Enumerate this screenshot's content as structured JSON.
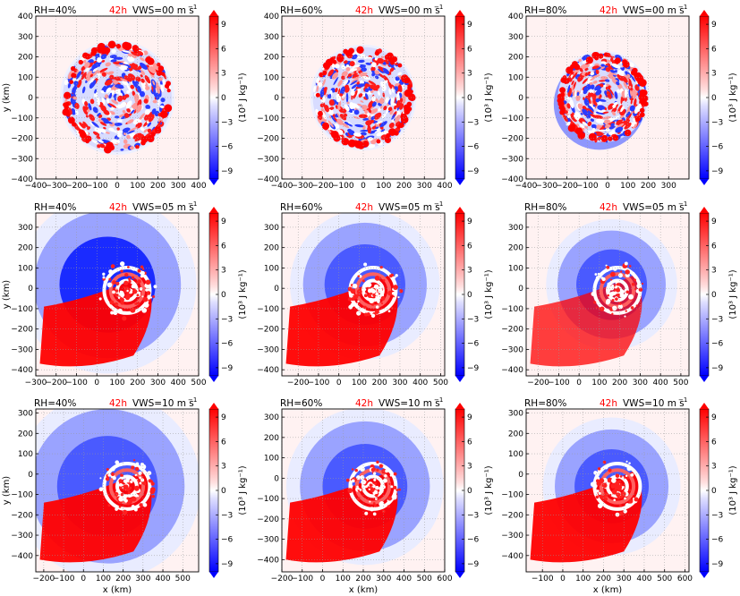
{
  "figure": {
    "panels": [
      {
        "rh": "RH=40%",
        "time": "42h",
        "vws": "VWS=00 m s",
        "vws_sup": "−1"
      },
      {
        "rh": "RH=60%",
        "time": "42h",
        "vws": "VWS=00 m s",
        "vws_sup": "−1"
      },
      {
        "rh": "RH=80%",
        "time": "42h",
        "vws": "VWS=00 m s",
        "vws_sup": "−1"
      },
      {
        "rh": "RH=40%",
        "time": "42h",
        "vws": "VWS=05 m s",
        "vws_sup": "−1"
      },
      {
        "rh": "RH=60%",
        "time": "42h",
        "vws": "VWS=05 m s",
        "vws_sup": "−1"
      },
      {
        "rh": "RH=80%",
        "time": "42h",
        "vws": "VWS=05 m s",
        "vws_sup": "−1"
      },
      {
        "rh": "RH=40%",
        "time": "42h",
        "vws": "VWS=10 m s",
        "vws_sup": "−1"
      },
      {
        "rh": "RH=60%",
        "time": "42h",
        "vws": "VWS=10 m s",
        "vws_sup": "−1"
      },
      {
        "rh": "RH=80%",
        "time": "42h",
        "vws": "VWS=10 m s",
        "vws_sup": "−1"
      }
    ],
    "xlabel": "x (km)",
    "ylabel": "y (km)",
    "colorbar_label": "(10³ J kg⁻¹)",
    "colorbar_ticks": [
      "9",
      "6",
      "3",
      "0",
      "−3",
      "−6",
      "−9"
    ]
  },
  "colors": {
    "positive": "#ff0000",
    "negative": "#0000ff",
    "neutral": "#ffffff",
    "title_time": "#ff0000"
  },
  "chart_data": [
    {
      "type": "heatmap",
      "panel": "RH=40%, VWS=00",
      "xlim": [
        -400,
        400
      ],
      "ylim": [
        -400,
        400
      ],
      "xticks": [
        "−400",
        "−300",
        "−200",
        "−100",
        "0",
        "100",
        "200",
        "300",
        "400"
      ],
      "yticks": [
        "400",
        "300",
        "200",
        "100",
        "0",
        "−100",
        "−200",
        "−300",
        "−400"
      ],
      "colorbar_range": [
        -10,
        10
      ],
      "grid": true
    },
    {
      "type": "heatmap",
      "panel": "RH=60%, VWS=00",
      "xlim": [
        -400,
        400
      ],
      "ylim": [
        -400,
        400
      ],
      "xticks": [
        "−400",
        "−300",
        "−200",
        "−100",
        "0",
        "100",
        "200",
        "300",
        "400"
      ],
      "yticks": [
        "400",
        "300",
        "200",
        "100",
        "0",
        "−100",
        "−200",
        "−300",
        "−400"
      ],
      "colorbar_range": [
        -10,
        10
      ],
      "grid": true
    },
    {
      "type": "heatmap",
      "panel": "RH=80%, VWS=00",
      "xlim": [
        -400,
        400
      ],
      "ylim": [
        -400,
        400
      ],
      "xticks": [
        "−400",
        "−300",
        "−200",
        "−100",
        "0",
        "100",
        "200",
        "300"
      ],
      "yticks": [
        "400",
        "300",
        "200",
        "100",
        "0",
        "−100",
        "−200",
        "−300",
        "−400"
      ],
      "colorbar_range": [
        -10,
        10
      ],
      "grid": true
    },
    {
      "type": "heatmap",
      "panel": "RH=40%, VWS=05",
      "xlim": [
        -300,
        500
      ],
      "ylim": [
        -430,
        370
      ],
      "xticks": [
        "−300",
        "−200",
        "−100",
        "0",
        "100",
        "200",
        "300",
        "400",
        "500"
      ],
      "yticks": [
        "300",
        "200",
        "100",
        "0",
        "−100",
        "−200",
        "−300",
        "−400"
      ],
      "colorbar_range": [
        -10,
        10
      ],
      "grid": true
    },
    {
      "type": "heatmap",
      "panel": "RH=60%, VWS=05",
      "xlim": [
        -280,
        520
      ],
      "ylim": [
        -430,
        370
      ],
      "xticks": [
        "−200",
        "−100",
        "0",
        "100",
        "200",
        "300",
        "400",
        "500"
      ],
      "yticks": [
        "300",
        "200",
        "100",
        "0",
        "−100",
        "−200",
        "−300",
        "−400"
      ],
      "colorbar_range": [
        -10,
        10
      ],
      "grid": true
    },
    {
      "type": "heatmap",
      "panel": "RH=80%, VWS=05",
      "xlim": [
        -260,
        540
      ],
      "ylim": [
        -430,
        370
      ],
      "xticks": [
        "−200",
        "−100",
        "0",
        "100",
        "200",
        "300",
        "400",
        "500"
      ],
      "yticks": [
        "300",
        "200",
        "100",
        "0",
        "−100",
        "−200",
        "−300",
        "−400"
      ],
      "colorbar_range": [
        -10,
        10
      ],
      "grid": true
    },
    {
      "type": "heatmap",
      "panel": "RH=40%, VWS=10",
      "xlim": [
        -240,
        580
      ],
      "ylim": [
        -480,
        320
      ],
      "xticks": [
        "−200",
        "−100",
        "0",
        "100",
        "200",
        "300",
        "400",
        "500"
      ],
      "yticks": [
        "300",
        "200",
        "100",
        "0",
        "−100",
        "−200",
        "−300",
        "−400"
      ],
      "colorbar_range": [
        -10,
        10
      ],
      "grid": true
    },
    {
      "type": "heatmap",
      "panel": "RH=60%, VWS=10",
      "xlim": [
        -200,
        600
      ],
      "ylim": [
        -460,
        340
      ],
      "xticks": [
        "−200",
        "−100",
        "0",
        "100",
        "200",
        "300",
        "400",
        "500",
        "600"
      ],
      "yticks": [
        "300",
        "200",
        "100",
        "0",
        "−100",
        "−200",
        "−300",
        "−400"
      ],
      "colorbar_range": [
        -10,
        10
      ],
      "grid": true
    },
    {
      "type": "heatmap",
      "panel": "RH=80%, VWS=10",
      "xlim": [
        -180,
        620
      ],
      "ylim": [
        -480,
        320
      ],
      "xticks": [
        "−100",
        "0",
        "100",
        "200",
        "300",
        "400",
        "500",
        "600"
      ],
      "yticks": [
        "300",
        "200",
        "100",
        "0",
        "−100",
        "−200",
        "−300",
        "−400"
      ],
      "colorbar_range": [
        -10,
        10
      ],
      "grid": true
    }
  ]
}
